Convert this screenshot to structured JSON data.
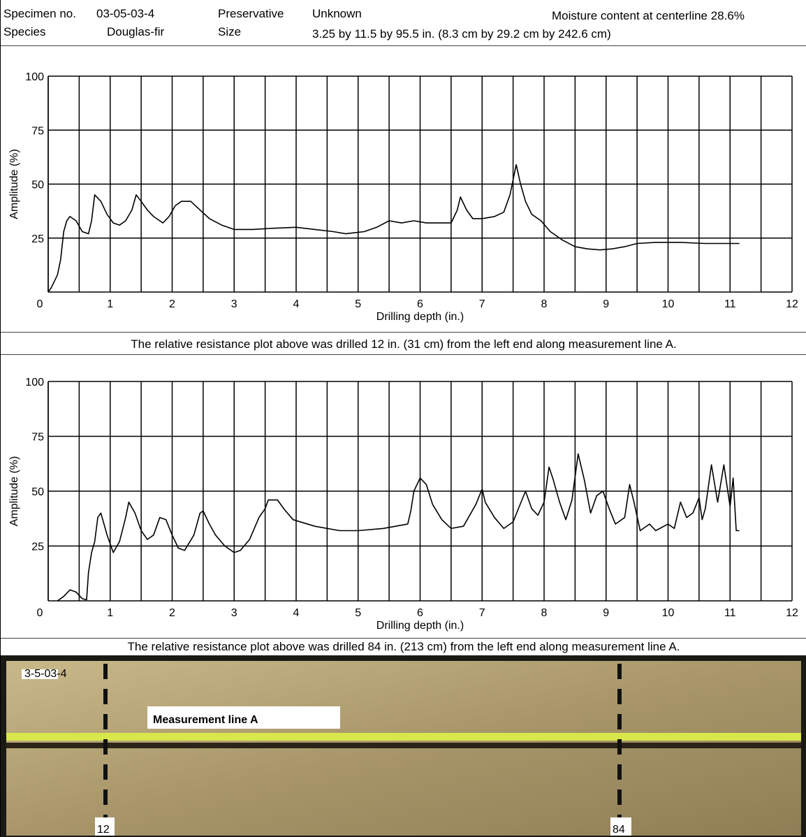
{
  "header": {
    "specimen_label": "Specimen no.",
    "specimen": "03-05-03-4",
    "species_label": "Species",
    "species": "Douglas-fir",
    "preservative_label": "Preservative",
    "preservative": "Unknown",
    "size_label": "Size",
    "size": "3.25 by 11.5 by 95.5 in. (8.3 cm by 29.2 cm by 242.6 cm)",
    "moisture": "Moisture content at centerline 28.6%"
  },
  "chart_data": [
    {
      "type": "line",
      "x_label": "Drilling depth (in.)",
      "y_label": "Amplitude (%)",
      "caption": "The relative resistance plot above was drilled 12 in. (31 cm) from the left end along measurement line A.",
      "xlim": [
        0,
        12
      ],
      "ylim": [
        0,
        100
      ],
      "xticks": [
        0,
        1,
        2,
        3,
        4,
        5,
        6,
        7,
        8,
        9,
        10,
        11,
        12
      ],
      "yticks": [
        25,
        50,
        75,
        100
      ],
      "grid": true,
      "color": "#000000",
      "x": [
        0,
        0.05,
        0.15,
        0.2,
        0.25,
        0.3,
        0.35,
        0.45,
        0.55,
        0.65,
        0.7,
        0.75,
        0.85,
        0.95,
        1.05,
        1.15,
        1.25,
        1.35,
        1.42,
        1.5,
        1.6,
        1.7,
        1.85,
        1.95,
        2.05,
        2.15,
        2.3,
        2.45,
        2.6,
        2.8,
        3.0,
        3.3,
        3.6,
        4.0,
        4.3,
        4.6,
        4.8,
        5.1,
        5.3,
        5.5,
        5.7,
        5.9,
        6.1,
        6.5,
        6.6,
        6.65,
        6.75,
        6.85,
        7.0,
        7.2,
        7.35,
        7.45,
        7.55,
        7.62,
        7.7,
        7.8,
        7.95,
        8.1,
        8.3,
        8.5,
        8.7,
        8.9,
        9.1,
        9.3,
        9.5,
        9.8,
        10.2,
        10.6,
        11.15
      ],
      "values": [
        0,
        2,
        8,
        15,
        28,
        33,
        35,
        33,
        28,
        27,
        33,
        45,
        42,
        36,
        32,
        31,
        33,
        38,
        45,
        42,
        38,
        35,
        32,
        35,
        40,
        42,
        42,
        38,
        34,
        31,
        29,
        29,
        29.5,
        30,
        29,
        28,
        27,
        28,
        30,
        33,
        32,
        33,
        32,
        32,
        38,
        44,
        38,
        34,
        34,
        35,
        37,
        45,
        59,
        50,
        42,
        36,
        33,
        28,
        24,
        21,
        20,
        19.5,
        20,
        21,
        22.5,
        23,
        23,
        22.5,
        22.5
      ]
    },
    {
      "type": "line",
      "x_label": "Drilling depth (in.)",
      "y_label": "Amplitude (%)",
      "caption": "The relative resistance plot above was drilled 84 in. (213 cm) from the left end along measurement line A.",
      "xlim": [
        0,
        12
      ],
      "ylim": [
        0,
        100
      ],
      "xticks": [
        0,
        1,
        2,
        3,
        4,
        5,
        6,
        7,
        8,
        9,
        10,
        11,
        12
      ],
      "yticks": [
        25,
        50,
        75,
        100
      ],
      "grid": true,
      "color": "#000000",
      "x": [
        0.15,
        0.25,
        0.35,
        0.45,
        0.55,
        0.62,
        0.65,
        0.7,
        0.75,
        0.8,
        0.85,
        0.9,
        0.95,
        1.05,
        1.15,
        1.25,
        1.3,
        1.4,
        1.5,
        1.6,
        1.7,
        1.8,
        1.9,
        2.0,
        2.1,
        2.2,
        2.35,
        2.45,
        2.5,
        2.6,
        2.7,
        2.85,
        3.0,
        3.1,
        3.25,
        3.4,
        3.5,
        3.55,
        3.7,
        3.8,
        3.95,
        4.3,
        4.7,
        5.0,
        5.4,
        5.8,
        5.85,
        5.9,
        6.0,
        6.1,
        6.2,
        6.35,
        6.5,
        6.7,
        6.9,
        7.0,
        7.05,
        7.2,
        7.35,
        7.5,
        7.6,
        7.7,
        7.8,
        7.9,
        8.0,
        8.08,
        8.15,
        8.25,
        8.35,
        8.45,
        8.55,
        8.65,
        8.75,
        8.85,
        8.95,
        9.05,
        9.15,
        9.3,
        9.38,
        9.45,
        9.55,
        9.7,
        9.8,
        10.0,
        10.1,
        10.2,
        10.3,
        10.4,
        10.5,
        10.55,
        10.6,
        10.7,
        10.8,
        10.9,
        11.0,
        11.05,
        11.1,
        11.15
      ],
      "values": [
        0,
        2,
        5,
        4,
        1,
        0.5,
        13,
        22,
        27,
        38,
        40,
        35,
        30,
        22,
        27,
        38,
        45,
        40,
        32,
        28,
        30,
        38,
        37,
        30,
        24,
        23,
        30,
        40,
        41,
        35,
        30,
        25,
        22,
        23,
        28,
        38,
        42,
        46,
        46,
        42,
        37,
        34,
        32,
        32,
        33,
        35,
        41,
        50,
        56,
        53,
        44,
        37,
        33,
        34,
        44,
        51,
        45,
        38,
        33,
        36,
        43,
        50,
        42,
        39,
        45,
        61,
        55,
        45,
        37,
        46,
        67,
        55,
        40,
        48,
        50,
        42,
        35,
        38,
        53,
        45,
        32,
        35,
        32,
        35,
        33,
        45,
        38,
        40,
        47,
        37,
        42,
        62,
        45,
        62,
        43,
        56,
        32,
        32
      ]
    }
  ],
  "photo": {
    "tag": "3-5-03-4",
    "line_label": "Measurement line A",
    "left_mark": "12",
    "right_mark": "84"
  }
}
